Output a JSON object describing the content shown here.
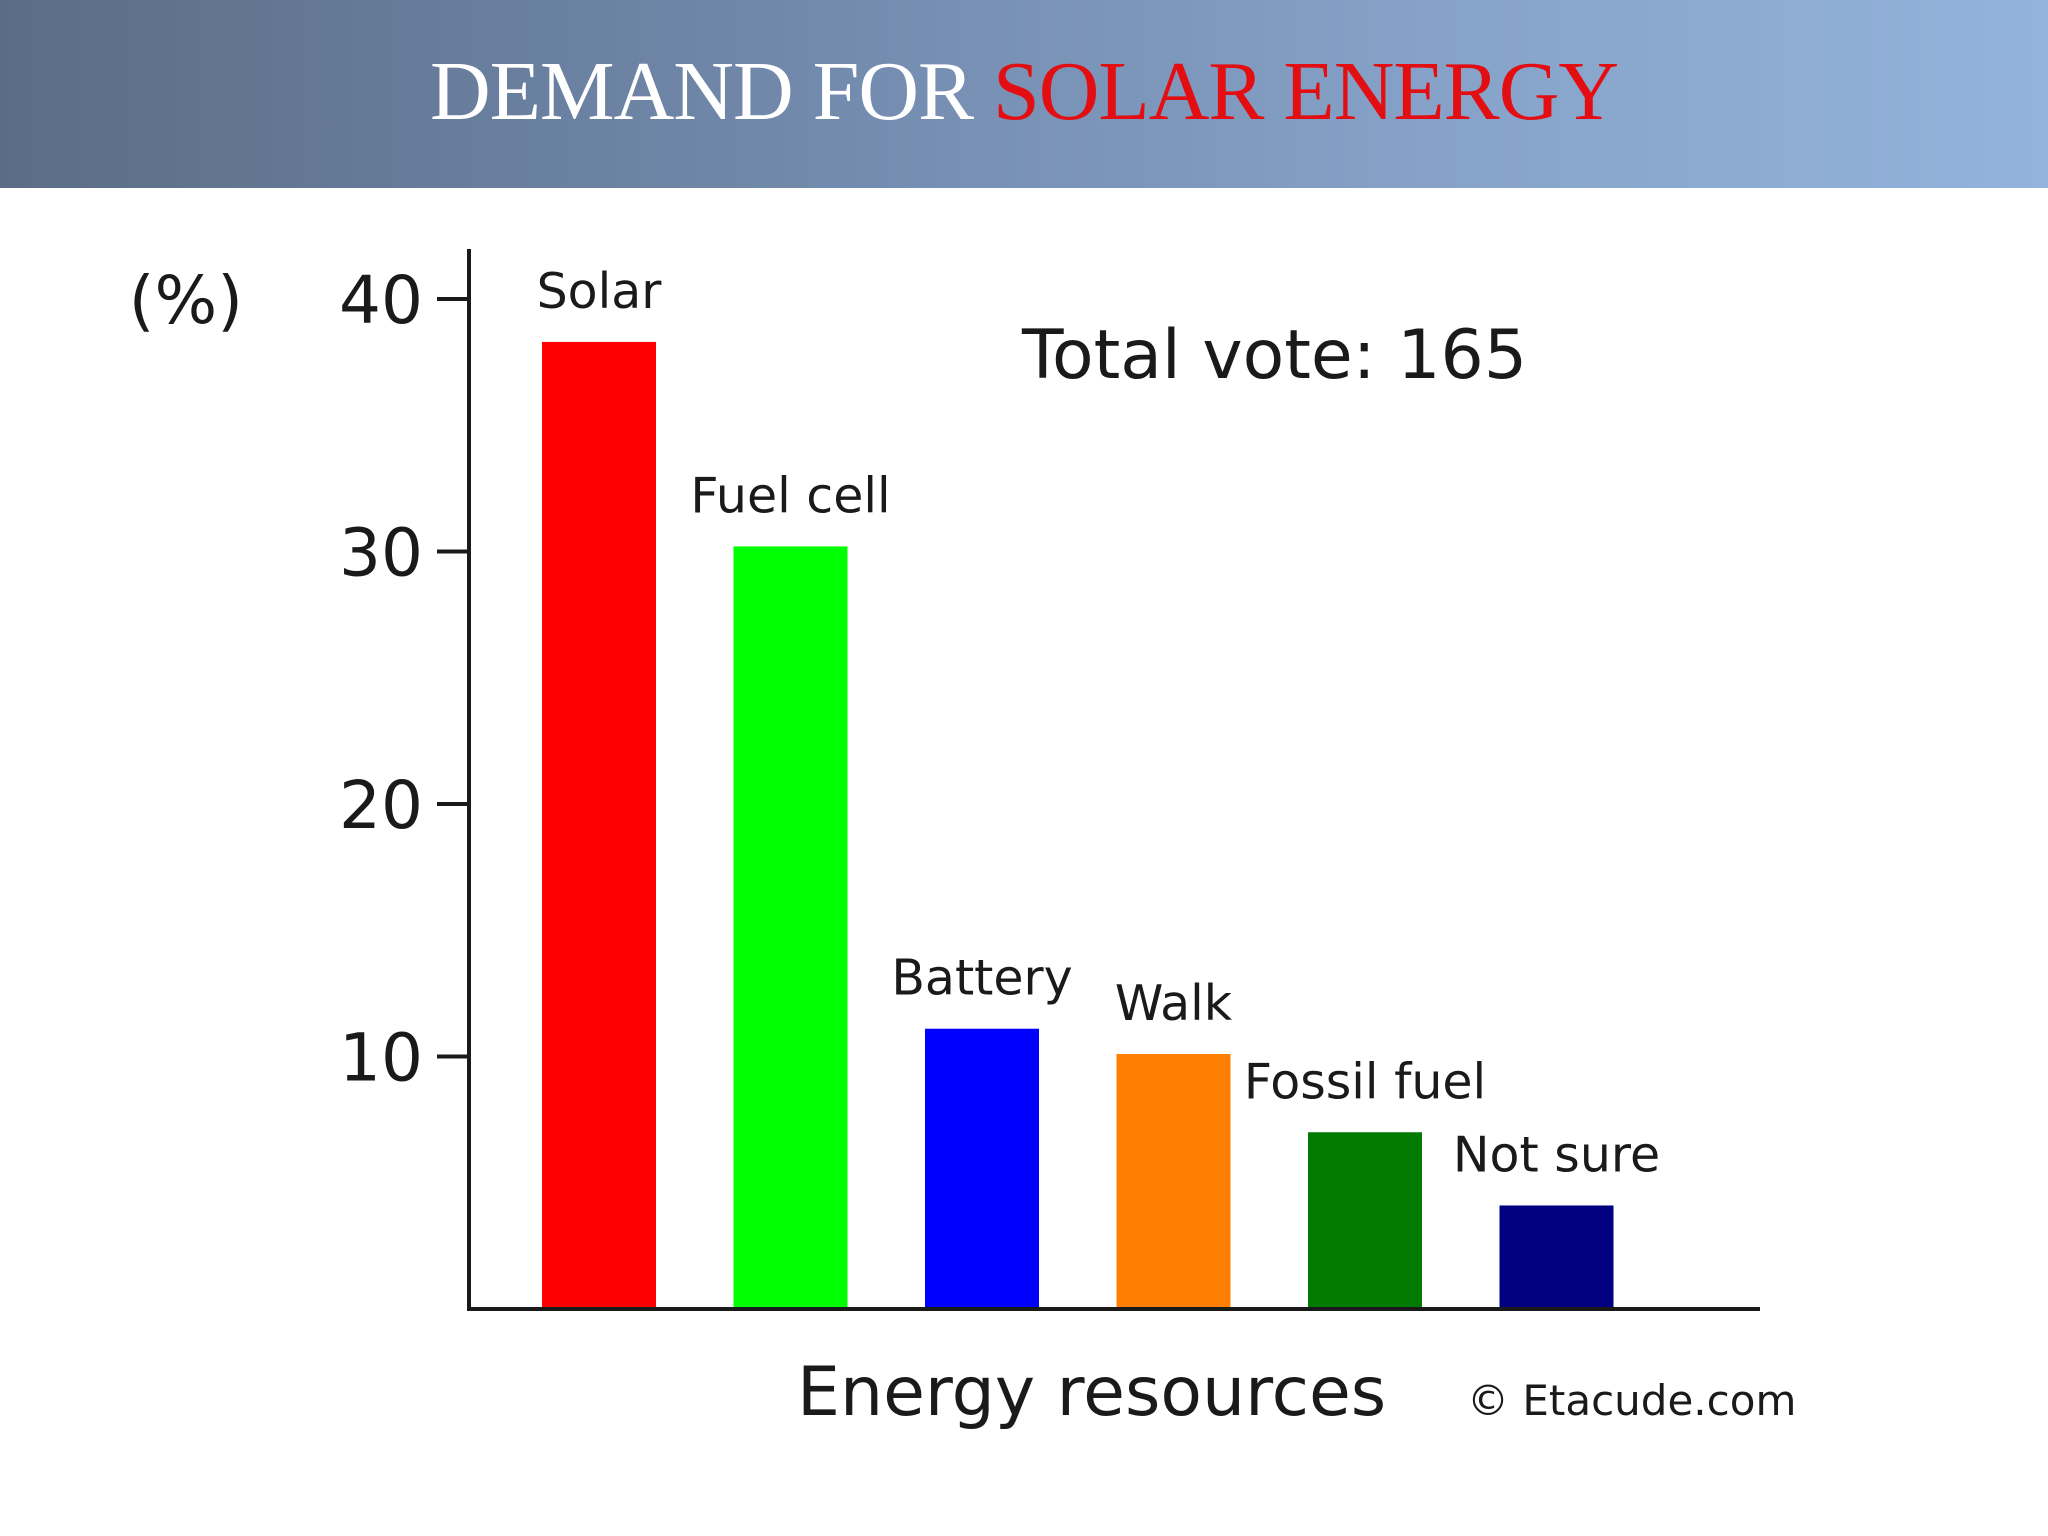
{
  "slide": {
    "title_part1": "DEMAND FOR ",
    "title_part2": "SOLAR ENERGY"
  },
  "colors": {
    "title_accent": "#e30e12",
    "header_gradient_start": "#5b6d86",
    "header_gradient_end": "#93b3dc"
  },
  "chart_data": {
    "type": "bar",
    "categories": [
      "Solar",
      "Fuel cell",
      "Battery",
      "Walk",
      "Fossil fuel",
      "Not sure"
    ],
    "values": [
      38.3,
      30.2,
      11.1,
      10.1,
      7.0,
      4.1
    ],
    "colors": [
      "#ff0000",
      "#00ff00",
      "#0000ff",
      "#ff8000",
      "#007a00",
      "#000080"
    ],
    "ylabel": "(%)",
    "xlabel": "Energy resources",
    "ylim": [
      0,
      41
    ],
    "yticks": [
      10,
      20,
      30,
      40
    ],
    "annotation": "Total vote: 165",
    "credit": "© Etacude.com",
    "grid": false,
    "legend": "none"
  }
}
